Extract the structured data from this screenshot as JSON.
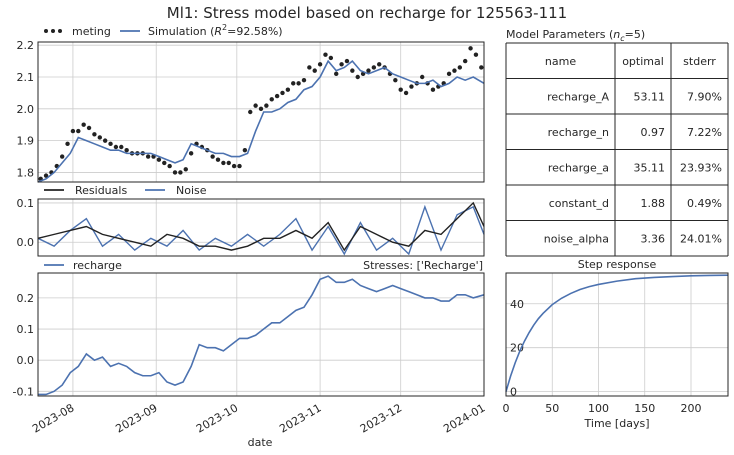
{
  "figure": {
    "title": "Ml1: Stress model based on recharge for 125563-111",
    "colors": {
      "observed": "#222222",
      "model": "#4c72b0",
      "residuals": "#222222",
      "noise": "#4c72b0"
    }
  },
  "chart_data": [
    {
      "type": "scatter+line",
      "panel": "simulation",
      "legend": [
        {
          "label": "meting",
          "marker": "dots"
        },
        {
          "label_prefix": "Simulation (",
          "r2_symbol": "R",
          "r2_sup": "2",
          "r2_value": "=92.58%)",
          "marker": "line"
        }
      ],
      "legend_position": "top-left-outside",
      "ylim": [
        1.77,
        2.21
      ],
      "yticks": [
        "1.8",
        "1.9",
        "2.0",
        "2.1",
        "2.2"
      ],
      "ytick_values": [
        1.8,
        1.9,
        2.0,
        2.1,
        2.2
      ],
      "xlim": [
        "2023-07-19",
        "2024-01-01"
      ],
      "grid": true,
      "series": [
        {
          "name": "meting",
          "x": [
            "2023-07-20",
            "2023-07-22",
            "2023-07-24",
            "2023-07-26",
            "2023-07-28",
            "2023-07-30",
            "2023-08-01",
            "2023-08-03",
            "2023-08-05",
            "2023-08-07",
            "2023-08-09",
            "2023-08-11",
            "2023-08-13",
            "2023-08-15",
            "2023-08-17",
            "2023-08-19",
            "2023-08-21",
            "2023-08-23",
            "2023-08-25",
            "2023-08-27",
            "2023-08-29",
            "2023-08-31",
            "2023-09-02",
            "2023-09-04",
            "2023-09-06",
            "2023-09-08",
            "2023-09-10",
            "2023-09-12",
            "2023-09-14",
            "2023-09-16",
            "2023-09-18",
            "2023-09-20",
            "2023-09-22",
            "2023-09-24",
            "2023-09-26",
            "2023-09-28",
            "2023-09-30",
            "2023-10-02",
            "2023-10-04",
            "2023-10-06",
            "2023-10-08",
            "2023-10-10",
            "2023-10-12",
            "2023-10-14",
            "2023-10-16",
            "2023-10-18",
            "2023-10-20",
            "2023-10-22",
            "2023-10-24",
            "2023-10-26",
            "2023-10-28",
            "2023-10-30",
            "2023-11-01",
            "2023-11-03",
            "2023-11-05",
            "2023-11-07",
            "2023-11-09",
            "2023-11-11",
            "2023-11-13",
            "2023-11-15",
            "2023-11-17",
            "2023-11-19",
            "2023-11-21",
            "2023-11-23",
            "2023-11-25",
            "2023-11-27",
            "2023-11-29",
            "2023-12-01",
            "2023-12-03",
            "2023-12-05",
            "2023-12-07",
            "2023-12-09",
            "2023-12-11",
            "2023-12-13",
            "2023-12-15",
            "2023-12-17",
            "2023-12-19",
            "2023-12-21",
            "2023-12-23",
            "2023-12-25",
            "2023-12-27",
            "2023-12-29",
            "2023-12-31"
          ],
          "y": [
            1.78,
            1.79,
            1.8,
            1.82,
            1.85,
            1.89,
            1.93,
            1.93,
            1.95,
            1.94,
            1.92,
            1.91,
            1.9,
            1.89,
            1.88,
            1.88,
            1.87,
            1.86,
            1.86,
            1.86,
            1.85,
            1.85,
            1.84,
            1.83,
            1.82,
            1.8,
            1.8,
            1.81,
            1.86,
            1.89,
            1.88,
            1.87,
            1.85,
            1.84,
            1.83,
            1.83,
            1.82,
            1.82,
            1.87,
            1.99,
            2.01,
            2.0,
            2.01,
            2.03,
            2.04,
            2.05,
            2.06,
            2.08,
            2.08,
            2.09,
            2.13,
            2.12,
            2.14,
            2.17,
            2.16,
            2.11,
            2.14,
            2.15,
            2.12,
            2.1,
            2.11,
            2.12,
            2.13,
            2.14,
            2.13,
            2.11,
            2.09,
            2.06,
            2.05,
            2.07,
            2.08,
            2.1,
            2.08,
            2.06,
            2.07,
            2.08,
            2.11,
            2.12,
            2.13,
            2.15,
            2.19,
            2.17,
            2.13
          ]
        },
        {
          "name": "Simulation",
          "x": [
            "2023-07-19",
            "2023-07-22",
            "2023-07-25",
            "2023-07-28",
            "2023-07-31",
            "2023-08-03",
            "2023-08-06",
            "2023-08-09",
            "2023-08-12",
            "2023-08-15",
            "2023-08-18",
            "2023-08-21",
            "2023-08-24",
            "2023-08-27",
            "2023-08-30",
            "2023-09-02",
            "2023-09-05",
            "2023-09-08",
            "2023-09-11",
            "2023-09-14",
            "2023-09-17",
            "2023-09-20",
            "2023-09-23",
            "2023-09-26",
            "2023-09-29",
            "2023-10-02",
            "2023-10-05",
            "2023-10-08",
            "2023-10-11",
            "2023-10-14",
            "2023-10-17",
            "2023-10-20",
            "2023-10-23",
            "2023-10-26",
            "2023-10-29",
            "2023-11-01",
            "2023-11-04",
            "2023-11-07",
            "2023-11-10",
            "2023-11-13",
            "2023-11-16",
            "2023-11-19",
            "2023-11-22",
            "2023-11-25",
            "2023-11-28",
            "2023-12-01",
            "2023-12-04",
            "2023-12-07",
            "2023-12-10",
            "2023-12-13",
            "2023-12-16",
            "2023-12-19",
            "2023-12-22",
            "2023-12-25",
            "2023-12-28",
            "2024-01-01"
          ],
          "y": [
            1.77,
            1.78,
            1.8,
            1.83,
            1.86,
            1.91,
            1.9,
            1.89,
            1.88,
            1.87,
            1.87,
            1.86,
            1.86,
            1.86,
            1.86,
            1.85,
            1.84,
            1.83,
            1.84,
            1.89,
            1.88,
            1.87,
            1.86,
            1.86,
            1.85,
            1.85,
            1.86,
            1.93,
            1.99,
            1.99,
            2.0,
            2.02,
            2.03,
            2.06,
            2.07,
            2.1,
            2.15,
            2.12,
            2.13,
            2.15,
            2.12,
            2.11,
            2.12,
            2.13,
            2.11,
            2.1,
            2.09,
            2.08,
            2.08,
            2.09,
            2.07,
            2.08,
            2.1,
            2.09,
            2.1,
            2.08
          ]
        }
      ]
    },
    {
      "type": "line",
      "panel": "residuals",
      "legend": [
        {
          "label": "Residuals"
        },
        {
          "label": "Noise"
        }
      ],
      "ylim": [
        -0.035,
        0.11
      ],
      "yticks": [
        "0.0",
        "0.1"
      ],
      "ytick_values": [
        0.0,
        0.1
      ],
      "grid": true,
      "series": [
        {
          "name": "Residuals",
          "x": [
            "2023-07-19",
            "2023-07-25",
            "2023-07-31",
            "2023-08-06",
            "2023-08-12",
            "2023-08-18",
            "2023-08-24",
            "2023-08-30",
            "2023-09-05",
            "2023-09-11",
            "2023-09-17",
            "2023-09-23",
            "2023-09-29",
            "2023-10-05",
            "2023-10-11",
            "2023-10-17",
            "2023-10-23",
            "2023-10-29",
            "2023-11-04",
            "2023-11-10",
            "2023-11-16",
            "2023-11-22",
            "2023-11-28",
            "2023-12-04",
            "2023-12-10",
            "2023-12-16",
            "2023-12-22",
            "2023-12-28",
            "2024-01-01"
          ],
          "y": [
            0.01,
            0.02,
            0.03,
            0.04,
            0.02,
            0.01,
            0.0,
            -0.01,
            0.02,
            0.01,
            -0.01,
            -0.01,
            -0.02,
            -0.01,
            0.01,
            0.01,
            0.03,
            0.01,
            0.05,
            -0.02,
            0.04,
            0.02,
            0.0,
            -0.01,
            0.03,
            0.02,
            0.06,
            0.1,
            0.04
          ]
        },
        {
          "name": "Noise",
          "x": [
            "2023-07-19",
            "2023-07-25",
            "2023-07-31",
            "2023-08-06",
            "2023-08-12",
            "2023-08-18",
            "2023-08-24",
            "2023-08-30",
            "2023-09-05",
            "2023-09-11",
            "2023-09-17",
            "2023-09-23",
            "2023-09-29",
            "2023-10-05",
            "2023-10-11",
            "2023-10-17",
            "2023-10-23",
            "2023-10-29",
            "2023-11-04",
            "2023-11-10",
            "2023-11-16",
            "2023-11-22",
            "2023-11-28",
            "2023-12-04",
            "2023-12-10",
            "2023-12-16",
            "2023-12-22",
            "2023-12-28",
            "2024-01-01"
          ],
          "y": [
            0.01,
            -0.01,
            0.03,
            0.06,
            -0.01,
            0.02,
            -0.02,
            0.01,
            -0.01,
            0.03,
            -0.02,
            0.01,
            -0.01,
            0.02,
            -0.01,
            0.02,
            0.06,
            -0.02,
            0.04,
            -0.03,
            0.05,
            -0.02,
            0.01,
            -0.03,
            0.09,
            -0.02,
            0.07,
            0.09,
            0.02
          ]
        }
      ]
    },
    {
      "type": "line",
      "panel": "recharge",
      "legend": [
        {
          "label": "recharge"
        }
      ],
      "annotation": "Stresses: ['Recharge']",
      "ylim": [
        -0.115,
        0.28
      ],
      "yticks": [
        "-0.1",
        "0.0",
        "0.1",
        "0.2"
      ],
      "ytick_values": [
        -0.1,
        0.0,
        0.1,
        0.2
      ],
      "xticks": [
        "2023-08",
        "2023-09",
        "2023-10",
        "2023-11",
        "2023-12",
        "2024-01"
      ],
      "xtick_values": [
        "2023-08-01",
        "2023-09-01",
        "2023-10-01",
        "2023-11-01",
        "2023-12-01",
        "2024-01-01"
      ],
      "xlabel": "date",
      "grid": true,
      "series": [
        {
          "name": "recharge",
          "x": [
            "2023-07-19",
            "2023-07-22",
            "2023-07-25",
            "2023-07-28",
            "2023-07-31",
            "2023-08-03",
            "2023-08-06",
            "2023-08-09",
            "2023-08-12",
            "2023-08-15",
            "2023-08-18",
            "2023-08-21",
            "2023-08-24",
            "2023-08-27",
            "2023-08-30",
            "2023-09-02",
            "2023-09-05",
            "2023-09-08",
            "2023-09-11",
            "2023-09-14",
            "2023-09-17",
            "2023-09-20",
            "2023-09-23",
            "2023-09-26",
            "2023-09-29",
            "2023-10-02",
            "2023-10-05",
            "2023-10-08",
            "2023-10-11",
            "2023-10-14",
            "2023-10-17",
            "2023-10-20",
            "2023-10-23",
            "2023-10-26",
            "2023-10-29",
            "2023-11-01",
            "2023-11-04",
            "2023-11-07",
            "2023-11-10",
            "2023-11-13",
            "2023-11-16",
            "2023-11-19",
            "2023-11-22",
            "2023-11-25",
            "2023-11-28",
            "2023-12-01",
            "2023-12-04",
            "2023-12-07",
            "2023-12-10",
            "2023-12-13",
            "2023-12-16",
            "2023-12-19",
            "2023-12-22",
            "2023-12-25",
            "2023-12-28",
            "2024-01-01"
          ],
          "y": [
            -0.11,
            -0.11,
            -0.1,
            -0.08,
            -0.04,
            -0.02,
            0.02,
            0.0,
            0.01,
            -0.02,
            -0.01,
            -0.02,
            -0.04,
            -0.05,
            -0.05,
            -0.04,
            -0.07,
            -0.08,
            -0.07,
            -0.02,
            0.05,
            0.04,
            0.04,
            0.03,
            0.05,
            0.07,
            0.07,
            0.08,
            0.1,
            0.12,
            0.12,
            0.14,
            0.16,
            0.17,
            0.21,
            0.26,
            0.27,
            0.25,
            0.25,
            0.26,
            0.24,
            0.23,
            0.22,
            0.23,
            0.24,
            0.23,
            0.22,
            0.21,
            0.2,
            0.2,
            0.19,
            0.19,
            0.21,
            0.21,
            0.2,
            0.21
          ]
        }
      ]
    },
    {
      "type": "line",
      "panel": "step_response",
      "title": "Step response",
      "xlabel": "Time [days]",
      "xlim": [
        0,
        240
      ],
      "ylim": [
        -2,
        54
      ],
      "xticks": [
        "0",
        "50",
        "100",
        "150",
        "200"
      ],
      "xtick_values": [
        0,
        50,
        100,
        150,
        200
      ],
      "yticks": [
        "0",
        "20",
        "40"
      ],
      "ytick_values": [
        0,
        20,
        40
      ],
      "grid": true,
      "series": [
        {
          "name": "step",
          "x": [
            0,
            5,
            10,
            15,
            20,
            25,
            30,
            35,
            40,
            50,
            60,
            70,
            80,
            90,
            100,
            120,
            140,
            160,
            180,
            200,
            220,
            240
          ],
          "y": [
            0,
            7.1,
            13.2,
            18.5,
            23.0,
            26.9,
            30.3,
            33.2,
            35.6,
            39.6,
            42.5,
            44.7,
            46.5,
            47.8,
            48.8,
            50.3,
            51.4,
            52.0,
            52.4,
            52.7,
            52.9,
            53.0
          ]
        }
      ]
    },
    {
      "type": "table",
      "panel": "parameters",
      "title_prefix": "Model Parameters (",
      "title_n": "n",
      "title_sub": "c",
      "title_suffix": "=5)",
      "columns": [
        "name",
        "optimal",
        "stderr"
      ],
      "rows": [
        [
          "recharge_A",
          "53.11",
          "7.90%"
        ],
        [
          "recharge_n",
          "0.97",
          "7.22%"
        ],
        [
          "recharge_a",
          "35.11",
          "23.93%"
        ],
        [
          "constant_d",
          "1.88",
          "0.49%"
        ],
        [
          "noise_alpha",
          "3.36",
          "24.01%"
        ]
      ]
    }
  ]
}
